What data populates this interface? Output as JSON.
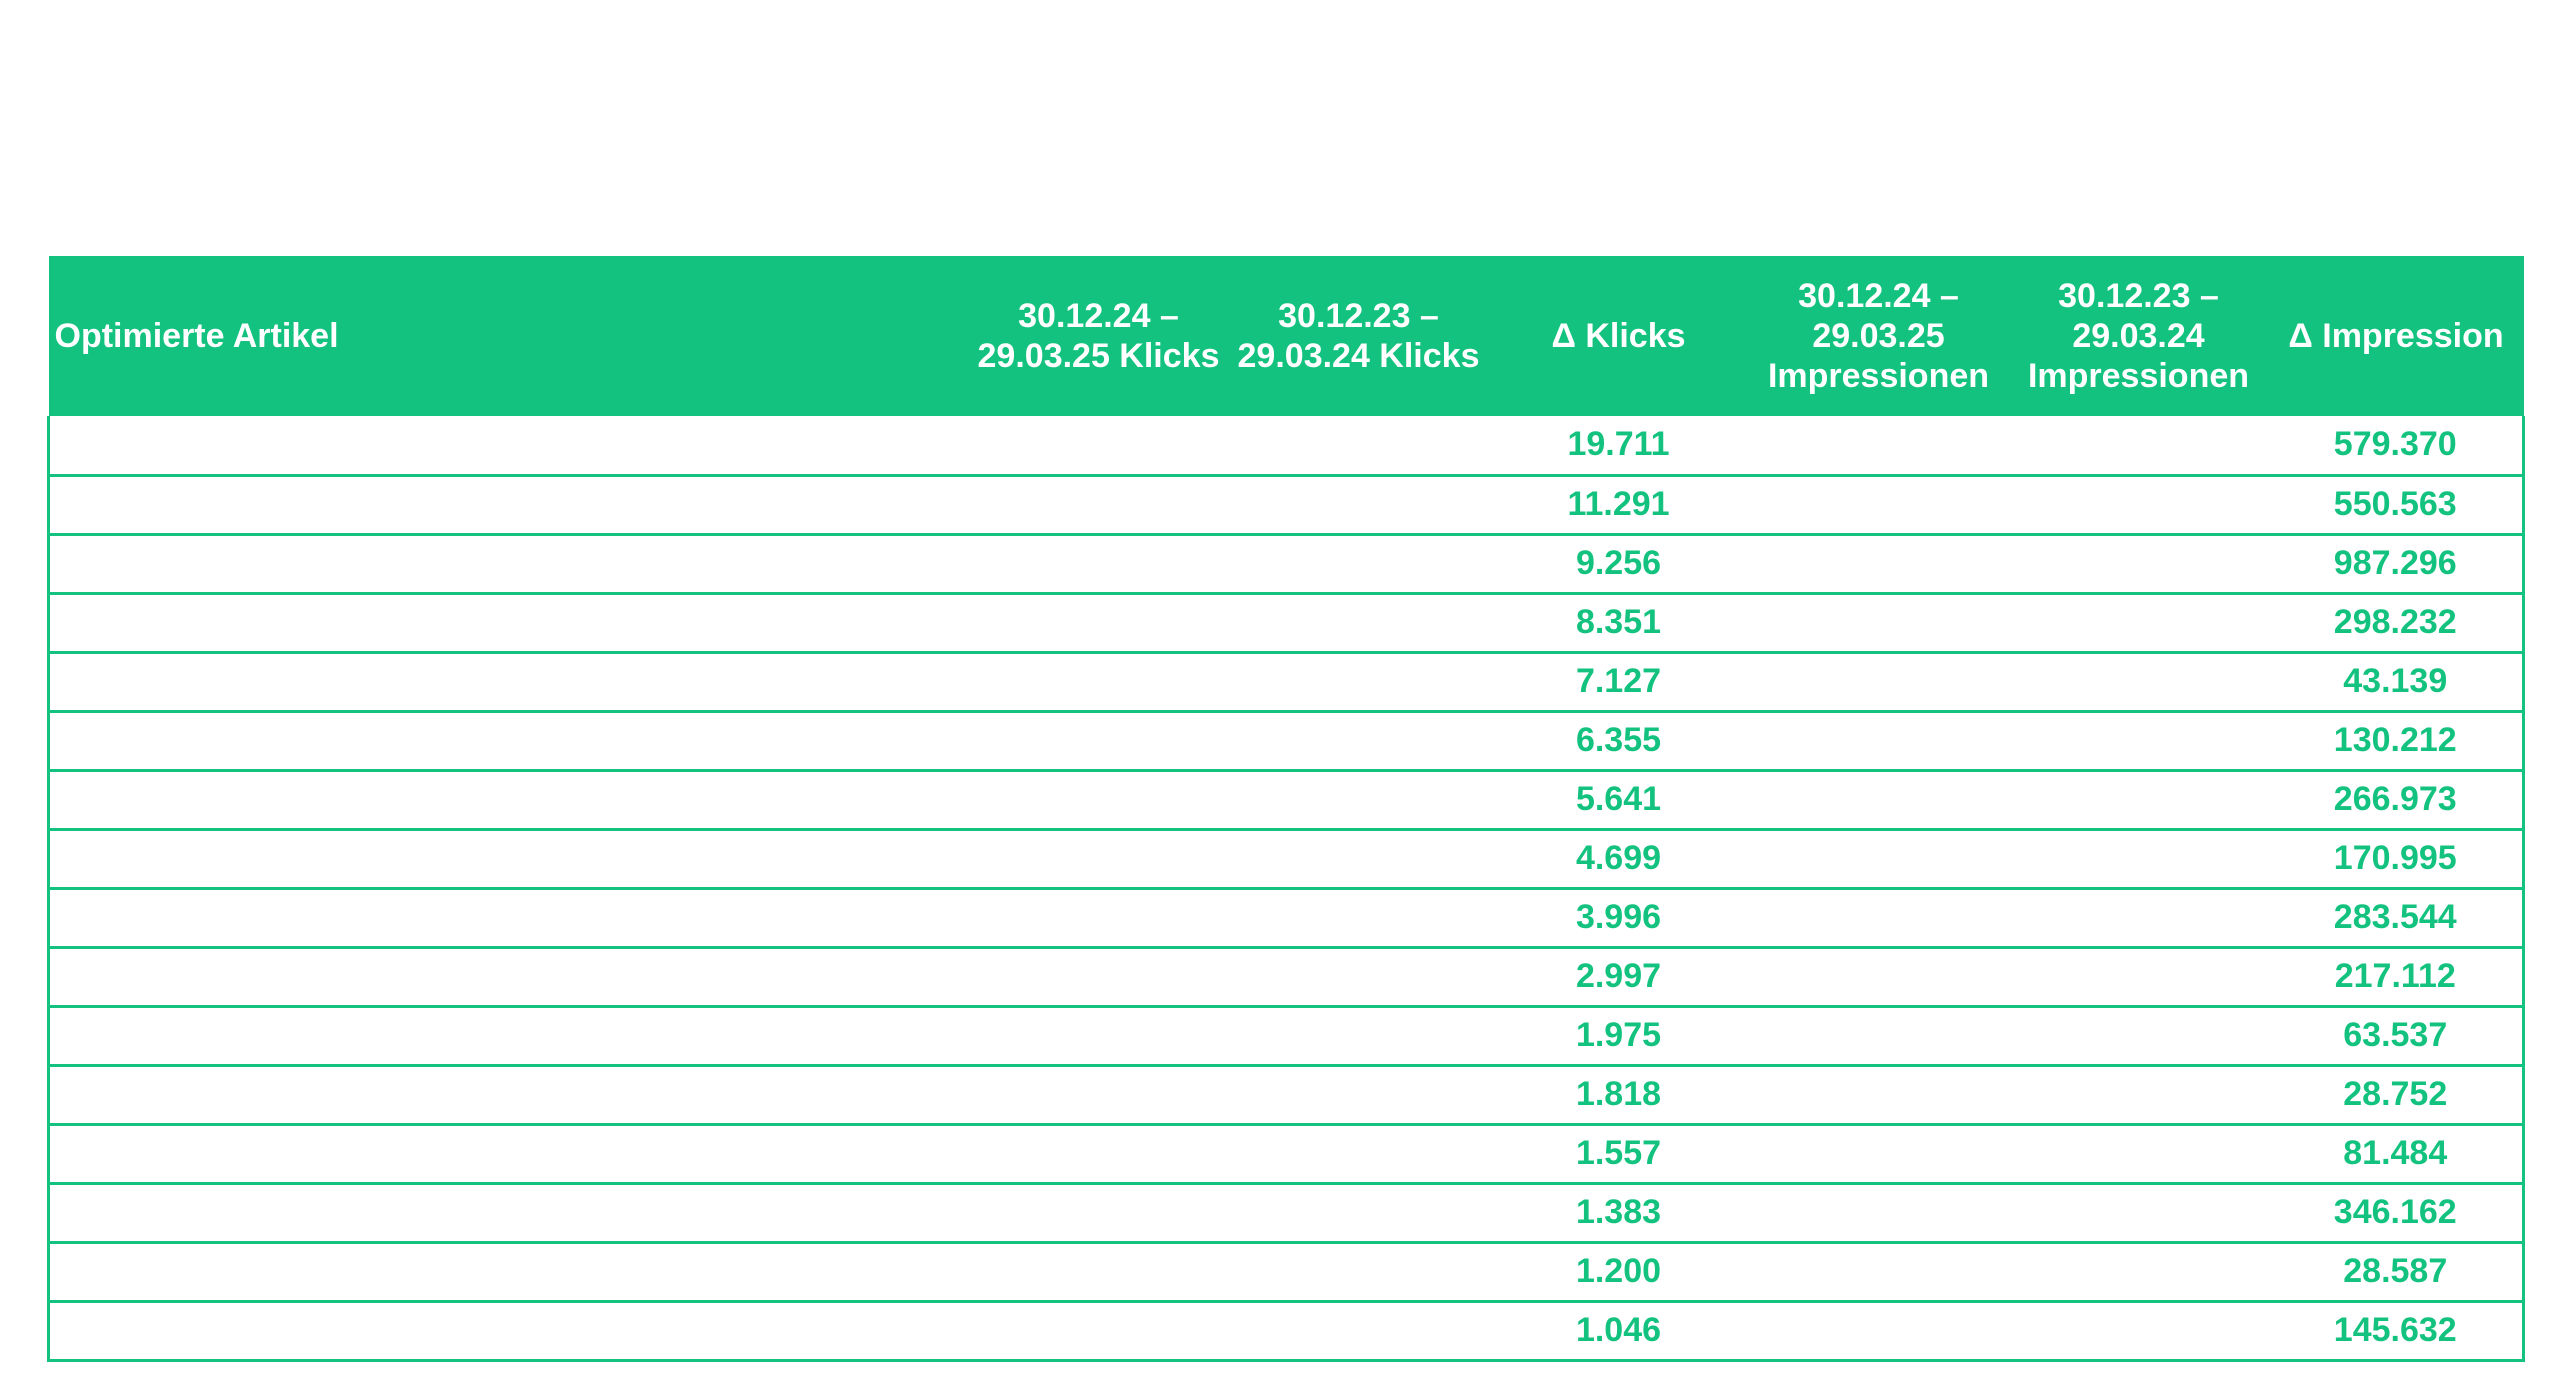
{
  "document": {
    "title": "",
    "table": {
      "headers": {
        "article": "Optimierte Artikel",
        "clicks_current": "30.12.24 – 29.03.25 Klicks",
        "clicks_previous": "30.12.23 – 29.03.24 Klicks",
        "delta_clicks": "Δ Klicks",
        "impressions_current": "30.12.24 – 29.03.25 Impressionen",
        "impressions_previous": "30.12.23 – 29.03.24 Impressionen",
        "delta_impressions": "Δ Impression"
      },
      "rows": [
        {
          "delta_clicks": "19.711",
          "delta_impressions": "579.370"
        },
        {
          "delta_clicks": "11.291",
          "delta_impressions": "550.563"
        },
        {
          "delta_clicks": "9.256",
          "delta_impressions": "987.296"
        },
        {
          "delta_clicks": "8.351",
          "delta_impressions": "298.232"
        },
        {
          "delta_clicks": "7.127",
          "delta_impressions": "43.139"
        },
        {
          "delta_clicks": "6.355",
          "delta_impressions": "130.212"
        },
        {
          "delta_clicks": "5.641",
          "delta_impressions": "266.973"
        },
        {
          "delta_clicks": "4.699",
          "delta_impressions": "170.995"
        },
        {
          "delta_clicks": "3.996",
          "delta_impressions": "283.544"
        },
        {
          "delta_clicks": "2.997",
          "delta_impressions": "217.112"
        },
        {
          "delta_clicks": "1.975",
          "delta_impressions": "63.537"
        },
        {
          "delta_clicks": "1.818",
          "delta_impressions": "28.752"
        },
        {
          "delta_clicks": "1.557",
          "delta_impressions": "81.484"
        },
        {
          "delta_clicks": "1.383",
          "delta_impressions": "346.162"
        },
        {
          "delta_clicks": "1.200",
          "delta_impressions": "28.587"
        },
        {
          "delta_clicks": "1.046",
          "delta_impressions": "145.632"
        }
      ]
    }
  },
  "colors": {
    "accent": "#13c27e",
    "header_text": "#ffffff",
    "background": "#ffffff"
  }
}
